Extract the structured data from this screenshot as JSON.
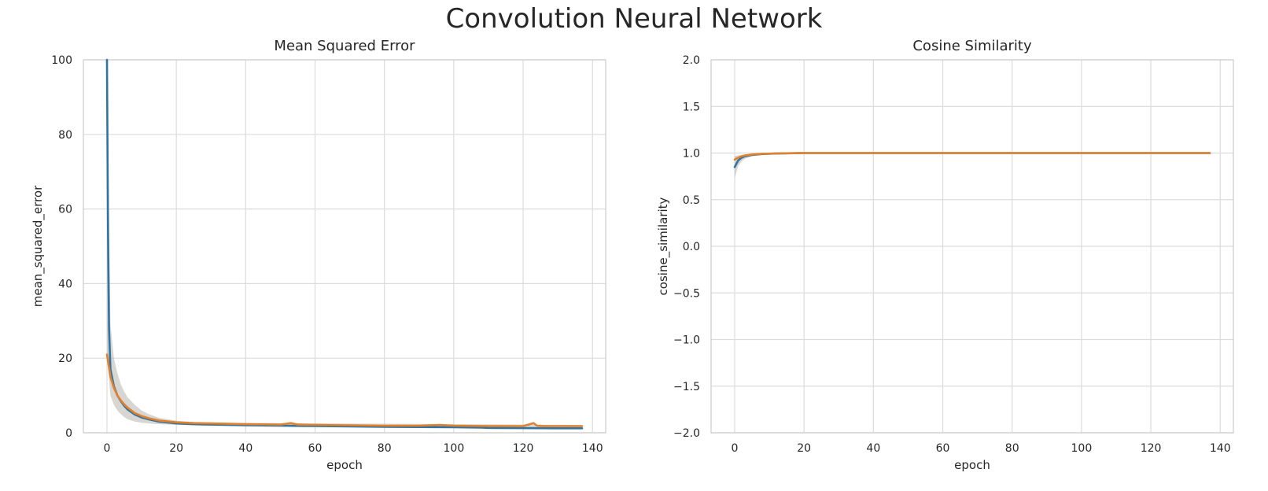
{
  "figure": {
    "suptitle": "Convolution Neural Network"
  },
  "colors": {
    "series1": "#3274a1",
    "series2": "#e1812c",
    "band": "#b8b4ad",
    "grid": "#dcdcdc",
    "frame": "#cccccc"
  },
  "chart_data": [
    {
      "type": "line",
      "title": "Mean Squared Error",
      "xlabel": "epoch",
      "ylabel": "mean_squared_error",
      "xlim": [
        -6.8,
        143.8
      ],
      "ylim": [
        0,
        100
      ],
      "xticks": [
        0,
        20,
        40,
        60,
        80,
        100,
        120,
        140
      ],
      "yticks": [
        0,
        20,
        40,
        60,
        80,
        100
      ],
      "ytick_labels": [
        "0",
        "20",
        "40",
        "60",
        "80",
        "100"
      ],
      "grid": true,
      "series": [
        {
          "x": [
            0,
            0.3,
            0.6,
            1,
            2,
            3,
            4,
            5,
            6,
            8,
            10,
            12,
            15,
            20,
            25,
            30,
            40,
            50,
            60,
            70,
            80,
            90,
            100,
            108,
            110,
            120,
            130,
            137
          ],
          "values": [
            100,
            55,
            28,
            17,
            12.5,
            10,
            8.5,
            7.2,
            6.2,
            4.9,
            4.1,
            3.6,
            3.0,
            2.5,
            2.3,
            2.2,
            2.0,
            1.9,
            1.8,
            1.7,
            1.6,
            1.55,
            1.5,
            1.4,
            1.3,
            1.25,
            1.2,
            1.2
          ]
        },
        {
          "x": [
            0,
            1,
            2,
            3,
            4,
            5,
            6,
            8,
            10,
            12,
            15,
            20,
            25,
            30,
            35,
            40,
            50,
            53,
            55,
            60,
            70,
            80,
            90,
            96,
            100,
            110,
            120,
            123,
            124,
            126,
            130,
            137
          ],
          "values": [
            21,
            15,
            12,
            10,
            8.7,
            7.6,
            6.7,
            5.3,
            4.5,
            3.9,
            3.3,
            2.8,
            2.6,
            2.5,
            2.4,
            2.3,
            2.2,
            2.6,
            2.2,
            2.1,
            2.0,
            1.9,
            1.9,
            2.1,
            1.9,
            1.8,
            1.8,
            2.6,
            1.9,
            1.8,
            1.8,
            1.8
          ]
        }
      ],
      "band": {
        "x": [
          0,
          1,
          2,
          3,
          4,
          5,
          6,
          8,
          10,
          12,
          15,
          20,
          25,
          30,
          137
        ],
        "upper": [
          100,
          29,
          20,
          16,
          13,
          11,
          9.5,
          7.5,
          6.0,
          5.0,
          4.0,
          3.2,
          2.9,
          2.7,
          2.1
        ],
        "lower": [
          21,
          10,
          7.5,
          6,
          5,
          4.2,
          3.6,
          3.0,
          2.7,
          2.5,
          2.3,
          2.1,
          2.0,
          1.9,
          1.1
        ]
      }
    },
    {
      "type": "line",
      "title": "Cosine Similarity",
      "xlabel": "epoch",
      "ylabel": "cosine_similarity",
      "xlim": [
        -6.8,
        143.8
      ],
      "ylim": [
        -2.0,
        2.0
      ],
      "xticks": [
        0,
        20,
        40,
        60,
        80,
        100,
        120,
        140
      ],
      "yticks": [
        -2.0,
        -1.5,
        -1.0,
        -0.5,
        0.0,
        0.5,
        1.0,
        1.5,
        2.0
      ],
      "ytick_labels": [
        "−2.0",
        "−1.5",
        "−1.0",
        "−0.5",
        "0.0",
        "0.5",
        "1.0",
        "1.5",
        "2.0"
      ],
      "grid": true,
      "series": [
        {
          "x": [
            0,
            1,
            2,
            3,
            5,
            8,
            12,
            20,
            40,
            60,
            80,
            100,
            120,
            137
          ],
          "values": [
            0.85,
            0.92,
            0.95,
            0.965,
            0.98,
            0.99,
            0.995,
            1.0,
            1.0,
            1.0,
            1.0,
            1.0,
            1.0,
            1.0
          ]
        },
        {
          "x": [
            0,
            1,
            2,
            3,
            5,
            8,
            12,
            20,
            40,
            60,
            80,
            100,
            120,
            137
          ],
          "values": [
            0.93,
            0.95,
            0.965,
            0.975,
            0.985,
            0.992,
            0.996,
            1.0,
            1.0,
            1.0,
            1.0,
            1.0,
            1.0,
            1.0
          ]
        }
      ],
      "band": {
        "x": [
          0,
          1,
          2,
          3,
          5,
          8,
          12,
          20,
          137
        ],
        "upper": [
          0.97,
          0.975,
          0.98,
          0.985,
          0.99,
          0.995,
          0.998,
          1.0,
          1.0
        ],
        "lower": [
          0.73,
          0.86,
          0.91,
          0.94,
          0.965,
          0.982,
          0.99,
          0.998,
          1.0
        ]
      }
    }
  ]
}
